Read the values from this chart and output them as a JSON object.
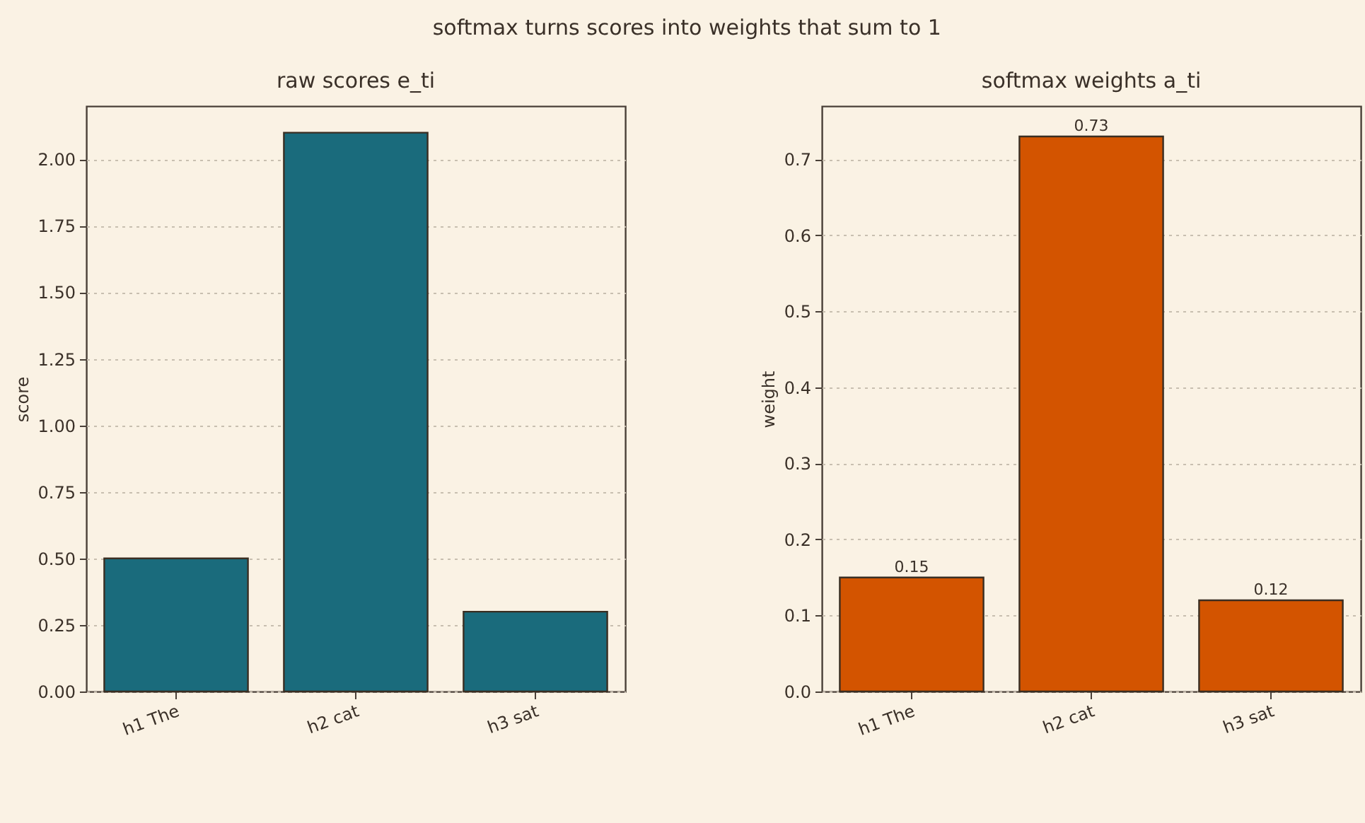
{
  "chart_data": [
    {
      "type": "bar",
      "title": "raw scores e_ti",
      "ylabel": "score",
      "annotations": [
        "softmax turns scores into weights that sum to 1"
      ],
      "categories": [
        "h1 The",
        "h2 cat",
        "h3 sat"
      ],
      "series": [
        {
          "color": "#1a6b7c",
          "values": [
            0.5,
            2.1,
            0.3
          ]
        }
      ],
      "ylim": [
        0,
        2.2
      ],
      "yticks": [
        {
          "value": 0,
          "label": "0.00"
        },
        {
          "value": 0.25,
          "label": "0.25"
        },
        {
          "value": 0.5,
          "label": "0.50"
        },
        {
          "value": 0.75,
          "label": "0.75"
        },
        {
          "value": 1,
          "label": "1.00"
        },
        {
          "value": 1.25,
          "label": "1.25"
        },
        {
          "value": 1.5,
          "label": "1.50"
        },
        {
          "value": 1.75,
          "label": "1.75"
        },
        {
          "value": 2,
          "label": "2.00"
        }
      ],
      "grid": "y"
    },
    {
      "type": "bar",
      "title": "softmax weights a_ti",
      "ylabel": "weight",
      "categories": [
        "h1 The",
        "h2 cat",
        "h3 sat"
      ],
      "series": [
        {
          "color": "#d35400",
          "values": [
            0.15,
            0.73,
            0.12
          ]
        }
      ],
      "ylim": [
        0,
        0.77
      ],
      "yticks": [
        {
          "value": 0,
          "label": "0.0"
        },
        0.1,
        0.2,
        0.3,
        0.4,
        0.5,
        0.6,
        0.7
      ],
      "grid": "y",
      "data_labels": true
    }
  ]
}
